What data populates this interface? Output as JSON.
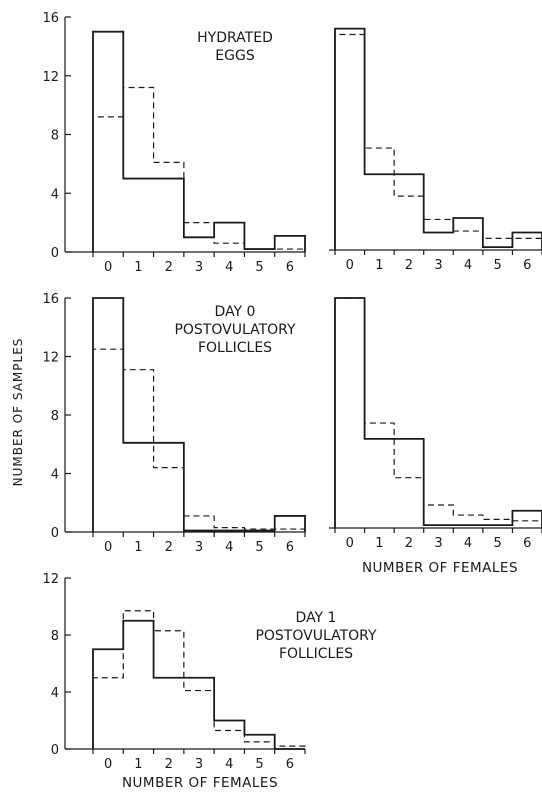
{
  "figure": {
    "ylabel": "NUMBER OF SAMPLES",
    "xlabel_right": "NUMBER OF FEMALES",
    "xlabel_bottom": "NUMBER OF FEMALES"
  },
  "chart_data": [
    {
      "type": "histogram",
      "panel": "hydrated-eggs-left",
      "title": "HYDRATED EGGS",
      "categories": [
        "0",
        "1",
        "2",
        "3",
        "4",
        "5",
        "6"
      ],
      "ylim": [
        0,
        16
      ],
      "yticks": [
        0,
        4,
        8,
        12,
        16
      ],
      "series": [
        {
          "style": "solid",
          "values": [
            15,
            5,
            5,
            1,
            2,
            0.2,
            1.1
          ]
        },
        {
          "style": "dashed",
          "values": [
            9.2,
            11.2,
            6.1,
            2.0,
            0.6,
            0.2,
            0.2
          ]
        }
      ]
    },
    {
      "type": "histogram",
      "panel": "hydrated-eggs-right",
      "categories": [
        "0",
        "1",
        "2",
        "3",
        "4",
        "5",
        "6"
      ],
      "ylim": [
        0,
        16
      ],
      "series": [
        {
          "style": "solid",
          "values": [
            15.2,
            5.2,
            5.2,
            1.2,
            2.2,
            0.2,
            1.2
          ]
        },
        {
          "style": "dashed",
          "values": [
            14.8,
            7.0,
            3.7,
            2.1,
            1.3,
            0.8,
            0.8
          ]
        }
      ]
    },
    {
      "type": "histogram",
      "panel": "day0-left",
      "title": "DAY 0 POSTOVULATORY FOLLICLES",
      "categories": [
        "0",
        "1",
        "2",
        "3",
        "4",
        "5",
        "6"
      ],
      "ylim": [
        0,
        16
      ],
      "yticks": [
        0,
        4,
        8,
        12,
        16
      ],
      "series": [
        {
          "style": "solid",
          "values": [
            16,
            6.1,
            6.1,
            0.1,
            0.1,
            0.1,
            1.1
          ]
        },
        {
          "style": "dashed",
          "values": [
            12.5,
            11.1,
            4.4,
            1.1,
            0.3,
            0.2,
            0.2
          ]
        }
      ]
    },
    {
      "type": "histogram",
      "panel": "day0-right",
      "categories": [
        "0",
        "1",
        "2",
        "3",
        "4",
        "5",
        "6"
      ],
      "ylim": [
        0,
        16
      ],
      "xlabel": "NUMBER OF FEMALES",
      "series": [
        {
          "style": "solid",
          "values": [
            16,
            6.2,
            6.2,
            0.2,
            0.2,
            0.2,
            1.2
          ]
        },
        {
          "style": "dashed",
          "values": [
            16,
            7.3,
            3.5,
            1.6,
            0.9,
            0.6,
            0.5
          ]
        }
      ]
    },
    {
      "type": "histogram",
      "panel": "day1",
      "title": "DAY 1 POSTOVULATORY FOLLICLES",
      "categories": [
        "0",
        "1",
        "2",
        "3",
        "4",
        "5",
        "6"
      ],
      "ylim": [
        0,
        12
      ],
      "yticks": [
        0,
        4,
        8,
        12
      ],
      "xlabel": "NUMBER OF FEMALES",
      "series": [
        {
          "style": "solid",
          "values": [
            7,
            9,
            5,
            5,
            2,
            1,
            0
          ]
        },
        {
          "style": "dashed",
          "values": [
            5,
            9.7,
            8.3,
            4.1,
            1.3,
            0.5,
            0.2
          ]
        }
      ]
    }
  ]
}
